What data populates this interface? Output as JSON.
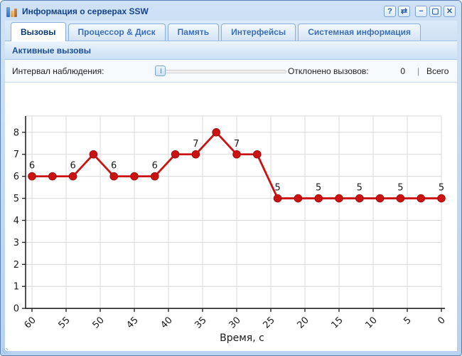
{
  "window": {
    "title": "Информация о серверах SSW",
    "tools": [
      {
        "name": "help",
        "glyph": "?"
      },
      {
        "name": "refresh",
        "glyph": "⇄"
      },
      {
        "name": "minimize",
        "glyph": "−"
      },
      {
        "name": "maximize",
        "glyph": "▢"
      },
      {
        "name": "close",
        "glyph": "✕"
      }
    ]
  },
  "tabs": [
    {
      "label": "Вызовы",
      "active": true
    },
    {
      "label": "Процессор & Диск",
      "active": false
    },
    {
      "label": "Память",
      "active": false
    },
    {
      "label": "Интерфейсы",
      "active": false
    },
    {
      "label": "Системная информация",
      "active": false
    }
  ],
  "panel": {
    "header": "Активные вызовы"
  },
  "toolbar": {
    "interval_label": "Интервал наблюдения:",
    "slider_position": "min",
    "rejected_label": "Отклонено вызовов:",
    "rejected_value": "0",
    "separator": "|",
    "total_label": "Всего"
  },
  "chart_data": {
    "type": "line",
    "title": "",
    "xlabel": "Время, с",
    "ylabel": "",
    "x": [
      60,
      57,
      54,
      51,
      48,
      45,
      42,
      39,
      36,
      33,
      30,
      27,
      24,
      21,
      18,
      15,
      12,
      9,
      6,
      3,
      0
    ],
    "values": [
      6,
      6,
      6,
      7,
      6,
      6,
      6,
      7,
      7,
      8,
      7,
      7,
      5,
      5,
      5,
      5,
      5,
      5,
      5,
      5,
      5
    ],
    "point_labels": [
      "6",
      "",
      "6",
      "",
      "6",
      "",
      "6",
      "",
      "7",
      "",
      "7",
      "",
      "5",
      "",
      "5",
      "",
      "5",
      "",
      "5",
      "",
      "5"
    ],
    "x_ticks": [
      60,
      55,
      50,
      45,
      40,
      35,
      30,
      25,
      20,
      15,
      10,
      5,
      0
    ],
    "y_ticks": [
      0,
      1,
      2,
      3,
      4,
      5,
      6,
      7,
      8
    ],
    "xlim": [
      60,
      0
    ],
    "ylim": [
      0,
      8.7
    ],
    "x_axis_reversed": true,
    "grid": true,
    "legend": "none",
    "line_color": "#cc1111",
    "marker_color": "#cc1111",
    "marker_edge_color": "#a30f0f",
    "grid_color": "#d9d9d9",
    "axis_color": "#262626",
    "text_color": "#1a1a1a"
  }
}
